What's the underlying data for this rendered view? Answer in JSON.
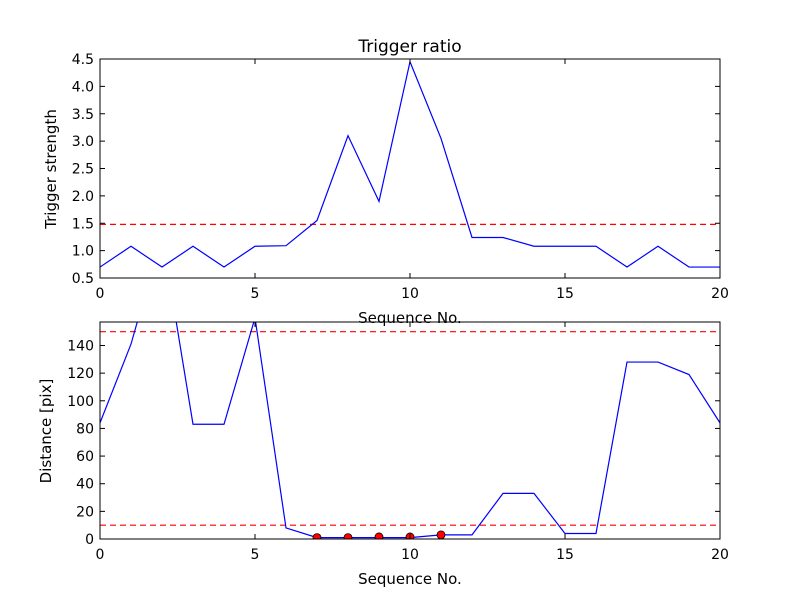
{
  "chart_data": [
    {
      "type": "line",
      "title": "Trigger ratio",
      "xlabel": "Sequence No.",
      "ylabel": "Trigger strength",
      "xlim": [
        0,
        20
      ],
      "ylim": [
        0.5,
        4.5
      ],
      "xticks": [
        "0",
        "5",
        "10",
        "15",
        "20"
      ],
      "yticks": [
        "0.5",
        "1.0",
        "1.5",
        "2.0",
        "2.5",
        "3.0",
        "3.5",
        "4.0",
        "4.5"
      ],
      "grid": false,
      "series": [
        {
          "color": "#0000ff",
          "style": "solid",
          "x": [
            0,
            1,
            2,
            3,
            4,
            5,
            6,
            7,
            8,
            9,
            10,
            11,
            12,
            13,
            14,
            15,
            16,
            17,
            18,
            19,
            20
          ],
          "y": [
            0.7,
            1.08,
            0.7,
            1.08,
            0.7,
            1.08,
            1.09,
            1.55,
            3.1,
            1.9,
            4.45,
            3.05,
            1.24,
            1.24,
            1.08,
            1.08,
            1.08,
            0.7,
            1.08,
            0.7,
            0.7
          ]
        }
      ],
      "hlines": [
        {
          "y": 1.48,
          "color": "#ff0000",
          "style": "dashed"
        }
      ]
    },
    {
      "type": "line",
      "title": "",
      "xlabel": "Sequence No.",
      "ylabel": "Distance [pix]",
      "xlim": [
        0,
        20
      ],
      "ylim": [
        0,
        157
      ],
      "xticks": [
        "0",
        "5",
        "10",
        "15",
        "20"
      ],
      "yticks": [
        "0",
        "20",
        "40",
        "60",
        "80",
        "100",
        "120",
        "140"
      ],
      "grid": false,
      "series": [
        {
          "color": "#0000ff",
          "style": "solid",
          "x": [
            0,
            1,
            2,
            3,
            4,
            5,
            6,
            7,
            8,
            9,
            10,
            11,
            12,
            13,
            14,
            15,
            16,
            17,
            18,
            19,
            20
          ],
          "y": [
            84,
            141,
            220,
            83,
            83,
            160,
            8,
            1,
            1,
            1,
            1,
            3,
            3,
            33,
            33,
            4,
            4,
            128,
            128,
            119,
            84
          ]
        }
      ],
      "markers": {
        "color": "#ff0000",
        "x": [
          7,
          8,
          9,
          10,
          11
        ],
        "y": [
          1,
          1,
          1.5,
          1.5,
          3
        ]
      },
      "hlines": [
        {
          "y": 150,
          "color": "#ff0000",
          "style": "dashed"
        },
        {
          "y": 10,
          "color": "#ff0000",
          "style": "dashed"
        }
      ]
    }
  ]
}
